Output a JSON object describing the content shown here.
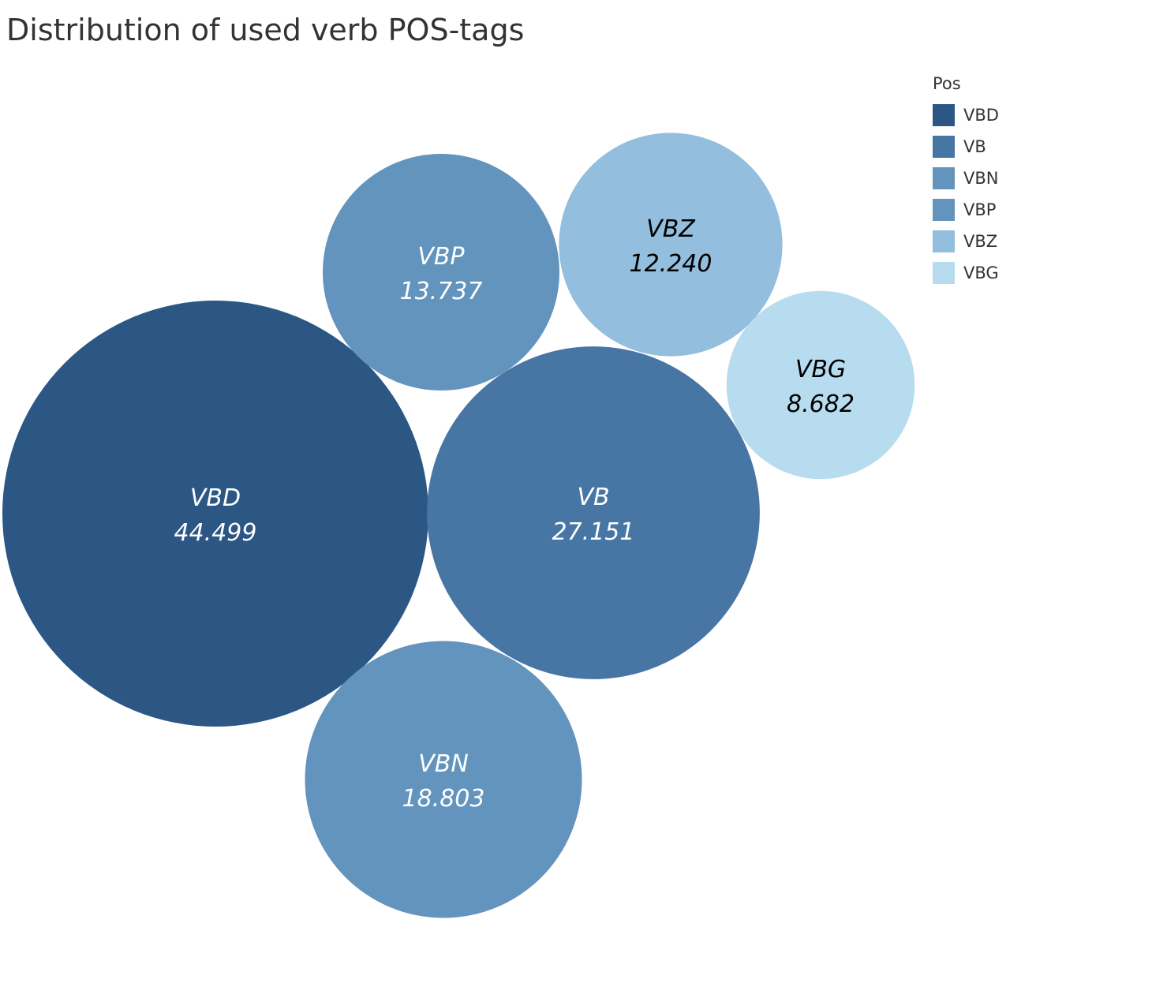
{
  "chart_data": {
    "type": "bubble",
    "title": "Distribution of used verb POS-tags",
    "legend": {
      "title": "Pos",
      "placement": "top-right",
      "entries": [
        {
          "label": "VBD",
          "color": "#2c5784"
        },
        {
          "label": "VB",
          "color": "#4775a4"
        },
        {
          "label": "VBN",
          "color": "#6394bd"
        },
        {
          "label": "VBP",
          "color": "#6394bd"
        },
        {
          "label": "VBZ",
          "color": "#93bedd"
        },
        {
          "label": "VBG",
          "color": "#b7dcf0"
        }
      ]
    },
    "series": [
      {
        "name": "VBD",
        "value": "44.499",
        "color": "#2c5784",
        "text_color": "#ffffff"
      },
      {
        "name": "VB",
        "value": "27.151",
        "color": "#4775a4",
        "text_color": "#ffffff"
      },
      {
        "name": "VBN",
        "value": "18.803",
        "color": "#6394bd",
        "text_color": "#ffffff"
      },
      {
        "name": "VBP",
        "value": "13.737",
        "color": "#6394bd",
        "text_color": "#ffffff"
      },
      {
        "name": "VBZ",
        "value": "12.240",
        "color": "#93bedd",
        "text_color": "#000000"
      },
      {
        "name": "VBG",
        "value": "8.682",
        "color": "#b7dcf0",
        "text_color": "#000000"
      }
    ]
  }
}
